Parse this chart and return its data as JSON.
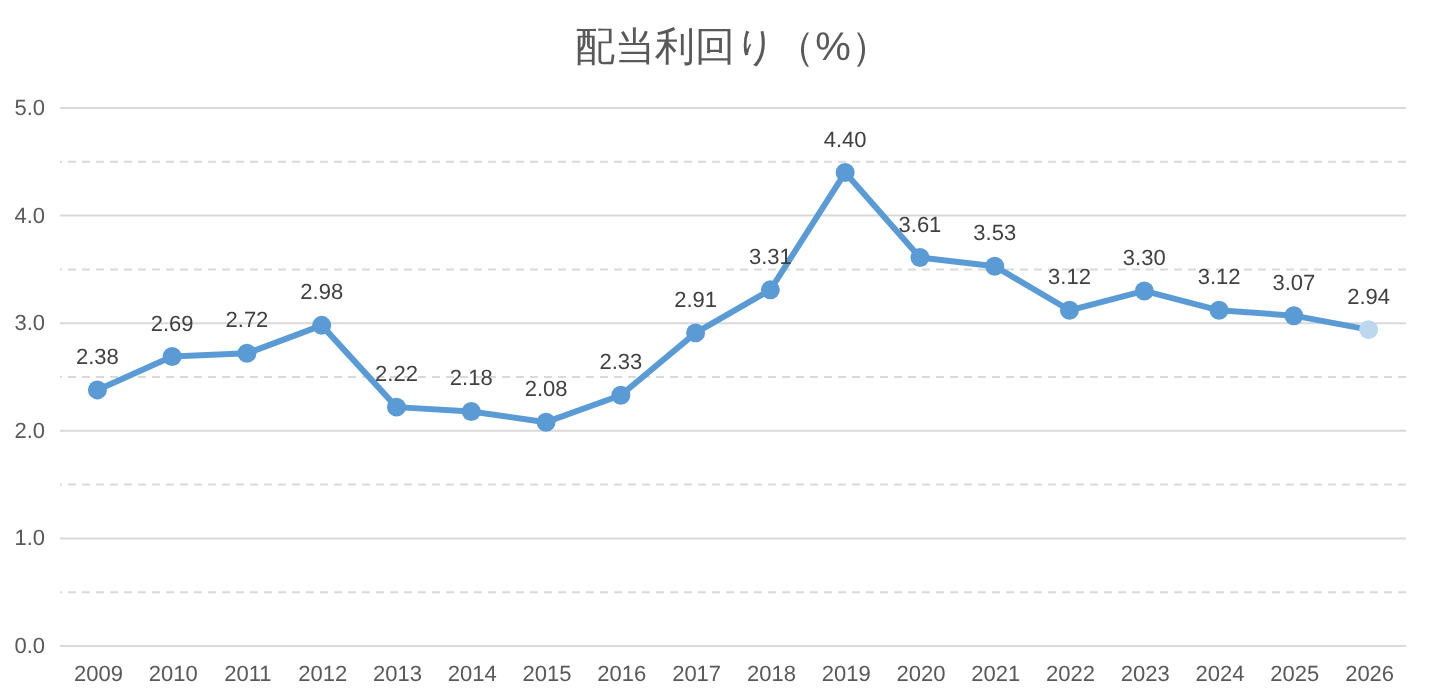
{
  "chart_data": {
    "type": "line",
    "title": "配当利回り（%）",
    "categories": [
      "2009",
      "2010",
      "2011",
      "2012",
      "2013",
      "2014",
      "2015",
      "2016",
      "2017",
      "2018",
      "2019",
      "2020",
      "2021",
      "2022",
      "2023",
      "2024",
      "2025",
      "2026"
    ],
    "series": [
      {
        "color": "#5b9bd5",
        "values": [
          2.38,
          2.69,
          2.72,
          2.98,
          2.22,
          2.18,
          2.08,
          2.33,
          2.91,
          3.31,
          4.4,
          3.61,
          3.53,
          3.12,
          3.3,
          3.12,
          3.07,
          2.94
        ],
        "value_labels": [
          "2.38",
          "2.69",
          "2.72",
          "2.98",
          "2.22",
          "2.18",
          "2.08",
          "2.33",
          "2.91",
          "3.31",
          "4.40",
          "3.61",
          "3.53",
          "3.12",
          "3.30",
          "3.12",
          "3.07",
          "2.94"
        ],
        "colors": [
          "#5b9bd5",
          "#5b9bd5",
          "#5b9bd5",
          "#5b9bd5",
          "#5b9bd5",
          "#5b9bd5",
          "#5b9bd5",
          "#5b9bd5",
          "#5b9bd5",
          "#5b9bd5",
          "#5b9bd5",
          "#5b9bd5",
          "#5b9bd5",
          "#5b9bd5",
          "#5b9bd5",
          "#5b9bd5",
          "#5b9bd5",
          "#bdd7ee"
        ]
      }
    ],
    "ylim": [
      0,
      5
    ],
    "yticks": [
      {
        "value": 0,
        "label": "0.0"
      },
      {
        "value": 0.5,
        "label": null
      },
      {
        "value": 1,
        "label": "1.0"
      },
      {
        "value": 1.5,
        "label": null
      },
      {
        "value": 2,
        "label": "2.0"
      },
      {
        "value": 2.5,
        "label": null
      },
      {
        "value": 3,
        "label": "3.0"
      },
      {
        "value": 3.5,
        "label": null
      },
      {
        "value": 4,
        "label": "4.0"
      },
      {
        "value": 4.5,
        "label": null
      },
      {
        "value": 5,
        "label": "5.0"
      }
    ],
    "grid": true,
    "marker": "circle",
    "line_style": "solid"
  }
}
